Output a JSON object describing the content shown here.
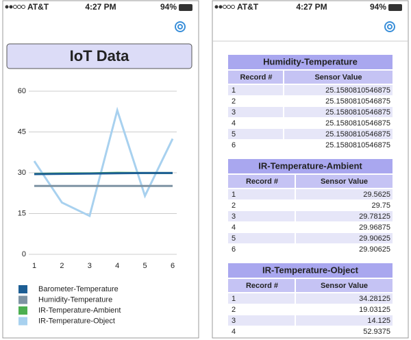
{
  "left": {
    "status": {
      "carrier": "AT&T",
      "time": "4:27 PM",
      "battery": "94%"
    },
    "title": "IoT Data"
  },
  "chart_data": {
    "type": "line",
    "x": [
      1,
      2,
      3,
      4,
      5,
      6
    ],
    "xlim": [
      1,
      6
    ],
    "xticks": [
      1,
      2,
      3,
      4,
      5,
      6
    ],
    "ylim": [
      0,
      60
    ],
    "yticks": [
      0,
      15,
      30,
      45,
      60
    ],
    "grid": true,
    "legend": "bottom",
    "series": [
      {
        "name": "Barometer-Temperature",
        "color": "#1d5e94",
        "values": [
          29.5,
          29.6,
          29.7,
          29.8,
          29.9,
          29.9
        ]
      },
      {
        "name": "Humidity-Temperature",
        "color": "#7e93a3",
        "values": [
          25.158,
          25.158,
          25.158,
          25.158,
          25.158,
          25.158
        ]
      },
      {
        "name": "IR-Temperature-Ambient",
        "color": "#4caf50",
        "values": [
          29.5625,
          29.75,
          29.78125,
          29.96875,
          29.90625,
          29.90625
        ]
      },
      {
        "name": "IR-Temperature-Object",
        "color": "#a8d1ef",
        "values": [
          34.28125,
          19.03125,
          14.125,
          52.9375,
          21.5,
          42.5
        ]
      }
    ]
  },
  "right": {
    "status": {
      "carrier": "AT&T",
      "time": "4:27 PM",
      "battery": "94%"
    },
    "tables": [
      {
        "title": "Humidity-Temperature",
        "columns": [
          "Record #",
          "Sensor Value"
        ],
        "rows": [
          [
            1,
            25.1580810546875
          ],
          [
            2,
            25.1580810546875
          ],
          [
            3,
            25.1580810546875
          ],
          [
            4,
            25.1580810546875
          ],
          [
            5,
            25.1580810546875
          ],
          [
            6,
            25.1580810546875
          ]
        ]
      },
      {
        "title": "IR-Temperature-Ambient",
        "columns": [
          "Record #",
          "Sensor Value"
        ],
        "rows": [
          [
            1,
            29.5625
          ],
          [
            2,
            29.75
          ],
          [
            3,
            29.78125
          ],
          [
            4,
            29.96875
          ],
          [
            5,
            29.90625
          ],
          [
            6,
            29.90625
          ]
        ]
      },
      {
        "title": "IR-Temperature-Object",
        "columns": [
          "Record #",
          "Sensor Value"
        ],
        "rows": [
          [
            1,
            34.28125
          ],
          [
            2,
            19.03125
          ],
          [
            3,
            14.125
          ],
          [
            4,
            52.9375
          ]
        ]
      }
    ]
  }
}
